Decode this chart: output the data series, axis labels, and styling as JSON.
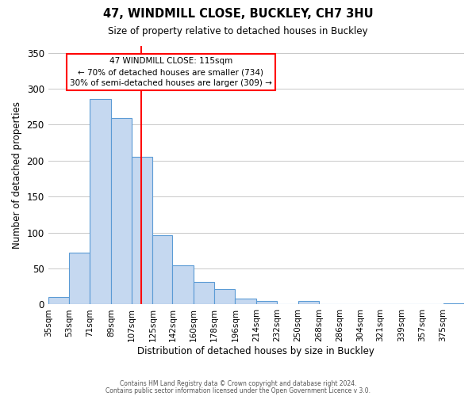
{
  "title": "47, WINDMILL CLOSE, BUCKLEY, CH7 3HU",
  "subtitle": "Size of property relative to detached houses in Buckley",
  "xlabel": "Distribution of detached houses by size in Buckley",
  "ylabel": "Number of detached properties",
  "bar_labels": [
    "35sqm",
    "53sqm",
    "71sqm",
    "89sqm",
    "107sqm",
    "125sqm",
    "142sqm",
    "160sqm",
    "178sqm",
    "196sqm",
    "214sqm",
    "232sqm",
    "250sqm",
    "268sqm",
    "286sqm",
    "304sqm",
    "321sqm",
    "339sqm",
    "357sqm",
    "375sqm"
  ],
  "bar_values": [
    10,
    72,
    286,
    259,
    205,
    96,
    54,
    31,
    21,
    8,
    5,
    0,
    5,
    0,
    0,
    0,
    0,
    0,
    0,
    2
  ],
  "bar_color": "#c5d8f0",
  "bar_edge_color": "#5b9bd5",
  "property_line_x": 115,
  "property_line_label": "47 WINDMILL CLOSE: 115sqm",
  "annotation_line1": "← 70% of detached houses are smaller (734)",
  "annotation_line2": "30% of semi-detached houses are larger (309) →",
  "ylim": [
    0,
    360
  ],
  "yticks": [
    0,
    50,
    100,
    150,
    200,
    250,
    300,
    350
  ],
  "bin_edges": [
    35,
    53,
    71,
    89,
    107,
    125,
    142,
    160,
    178,
    196,
    214,
    232,
    250,
    268,
    286,
    304,
    321,
    339,
    357,
    375,
    393
  ],
  "footer1": "Contains HM Land Registry data © Crown copyright and database right 2024.",
  "footer2": "Contains public sector information licensed under the Open Government Licence v 3.0.",
  "bg_color": "#ffffff",
  "grid_color": "#c8c8c8"
}
